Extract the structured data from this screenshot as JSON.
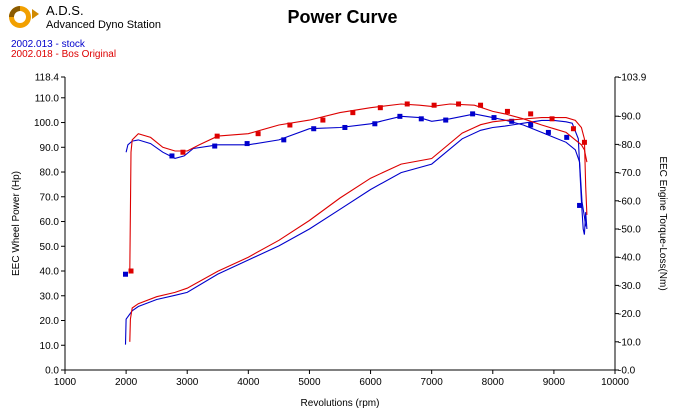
{
  "header": {
    "brand_name": "A.D.S.",
    "brand_subtitle": "Advanced Dyno Station",
    "logo_icon": "ads-gear-logo-icon"
  },
  "chart_data": {
    "type": "line",
    "title": "Power Curve",
    "xlabel": "Revolutions (rpm)",
    "ylabel_left": "EEC Wheel Power (Hp)",
    "ylabel_right": "EEC Engine Torque-Loss(Nm)",
    "xlim": [
      1000,
      10000
    ],
    "x_ticks": [
      "1000",
      "2000",
      "3000",
      "4000",
      "5000",
      "6000",
      "7000",
      "8000",
      "9000",
      "10000"
    ],
    "ylim_left": [
      0,
      118.4
    ],
    "y_ticks_left": [
      "0.0",
      "10.0",
      "20.0",
      "30.0",
      "40.0",
      "50.0",
      "60.0",
      "70.0",
      "80.0",
      "90.0",
      "100.0",
      "110.0",
      "118.4"
    ],
    "ylim_right": [
      0,
      103.9
    ],
    "y_ticks_right": [
      "0.0",
      "10.0",
      "20.0",
      "30.0",
      "40.0",
      "50.0",
      "60.0",
      "70.0",
      "80.0",
      "90.0",
      "103.9"
    ],
    "grid": false,
    "legend_position": "top-left",
    "series": [
      {
        "name": "2002.013 - stock",
        "color": "#0000cc",
        "torque_nm": {
          "x": [
            1990,
            2000,
            2100,
            2200,
            2500,
            2800,
            3000,
            3500,
            4000,
            4500,
            5000,
            5500,
            6000,
            6500,
            7000,
            7500,
            7800,
            8000,
            8200,
            8500,
            8800,
            9000,
            9200,
            9300,
            9400,
            9450,
            9480,
            9500,
            9520,
            9540
          ],
          "y": [
            9,
            18,
            21,
            22.5,
            25,
            26.5,
            27.5,
            34,
            39,
            44,
            50,
            57,
            64,
            70,
            73,
            82,
            85,
            86,
            86.5,
            87.5,
            88.5,
            88.5,
            88,
            87.5,
            82,
            60,
            50,
            48,
            56,
            50
          ]
        },
        "power_hp": {
          "x": [
            2000,
            2030,
            2100,
            2200,
            2400,
            2600,
            2800,
            2950,
            3100,
            3500,
            4000,
            4500,
            5000,
            5500,
            6000,
            6500,
            6800,
            7000,
            7300,
            7700,
            8000,
            8200,
            8500,
            8800,
            9000,
            9200,
            9350,
            9420,
            9460,
            9500,
            9520
          ],
          "y": [
            88,
            91,
            92.5,
            93,
            91.5,
            88,
            85.5,
            86.5,
            89.5,
            91,
            91,
            93,
            97.5,
            98,
            99.5,
            102.5,
            102,
            100.5,
            101.5,
            103.5,
            102,
            101,
            99,
            96,
            94,
            92,
            89,
            84,
            68,
            62,
            58
          ]
        },
        "markers_hp": {
          "x": [
            1990,
            2750,
            3450,
            3980,
            4580,
            5070,
            5580,
            6070,
            6480,
            6830,
            7230,
            7670,
            8020,
            8310,
            8620,
            8910,
            9210,
            9420
          ],
          "y": [
            38.7,
            86.5,
            90.5,
            91.5,
            93,
            97.5,
            98,
            99.5,
            102.5,
            101.5,
            101,
            103.5,
            102,
            100.5,
            99,
            96,
            94,
            66.5
          ]
        }
      },
      {
        "name": "2002.018 - Bos Original",
        "color": "#dd0000",
        "torque_nm": {
          "x": [
            2060,
            2070,
            2100,
            2200,
            2500,
            2800,
            3000,
            3500,
            4000,
            4500,
            5000,
            5500,
            6000,
            6500,
            7000,
            7500,
            7800,
            8000,
            8200,
            8500,
            8800,
            9000,
            9200,
            9350,
            9450,
            9500,
            9520,
            9540
          ],
          "y": [
            10,
            18,
            22,
            23.5,
            26,
            27.5,
            29,
            35,
            40,
            46,
            53,
            61,
            68,
            73,
            75,
            84,
            87,
            88,
            88.5,
            89,
            89.5,
            89.5,
            89.5,
            88.5,
            86,
            82,
            65,
            55
          ]
        },
        "power_hp": {
          "x": [
            2060,
            2080,
            2100,
            2200,
            2400,
            2600,
            2800,
            3000,
            3200,
            3500,
            4000,
            4500,
            5000,
            5500,
            6000,
            6500,
            6800,
            7000,
            7300,
            7700,
            8000,
            8200,
            8500,
            8800,
            9000,
            9200,
            9350,
            9450,
            9500,
            9540
          ],
          "y": [
            40,
            88,
            93,
            95.5,
            94,
            90,
            88.5,
            88.5,
            91,
            94.5,
            95.5,
            99,
            101,
            104,
            106,
            107.5,
            107,
            106.5,
            107.5,
            107,
            104.5,
            103.5,
            101.5,
            99,
            97.5,
            96,
            93,
            91,
            89,
            84
          ]
        },
        "markers_hp": {
          "x": [
            2080,
            2930,
            3490,
            4160,
            4680,
            5220,
            5710,
            6160,
            6600,
            7040,
            7440,
            7800,
            8240,
            8620,
            8970,
            9320,
            9500
          ],
          "y": [
            40,
            88,
            94.5,
            95.5,
            99,
            101,
            104,
            106,
            107.5,
            107,
            107.5,
            107,
            104.5,
            103.5,
            101.5,
            97.5,
            92
          ]
        }
      }
    ]
  }
}
